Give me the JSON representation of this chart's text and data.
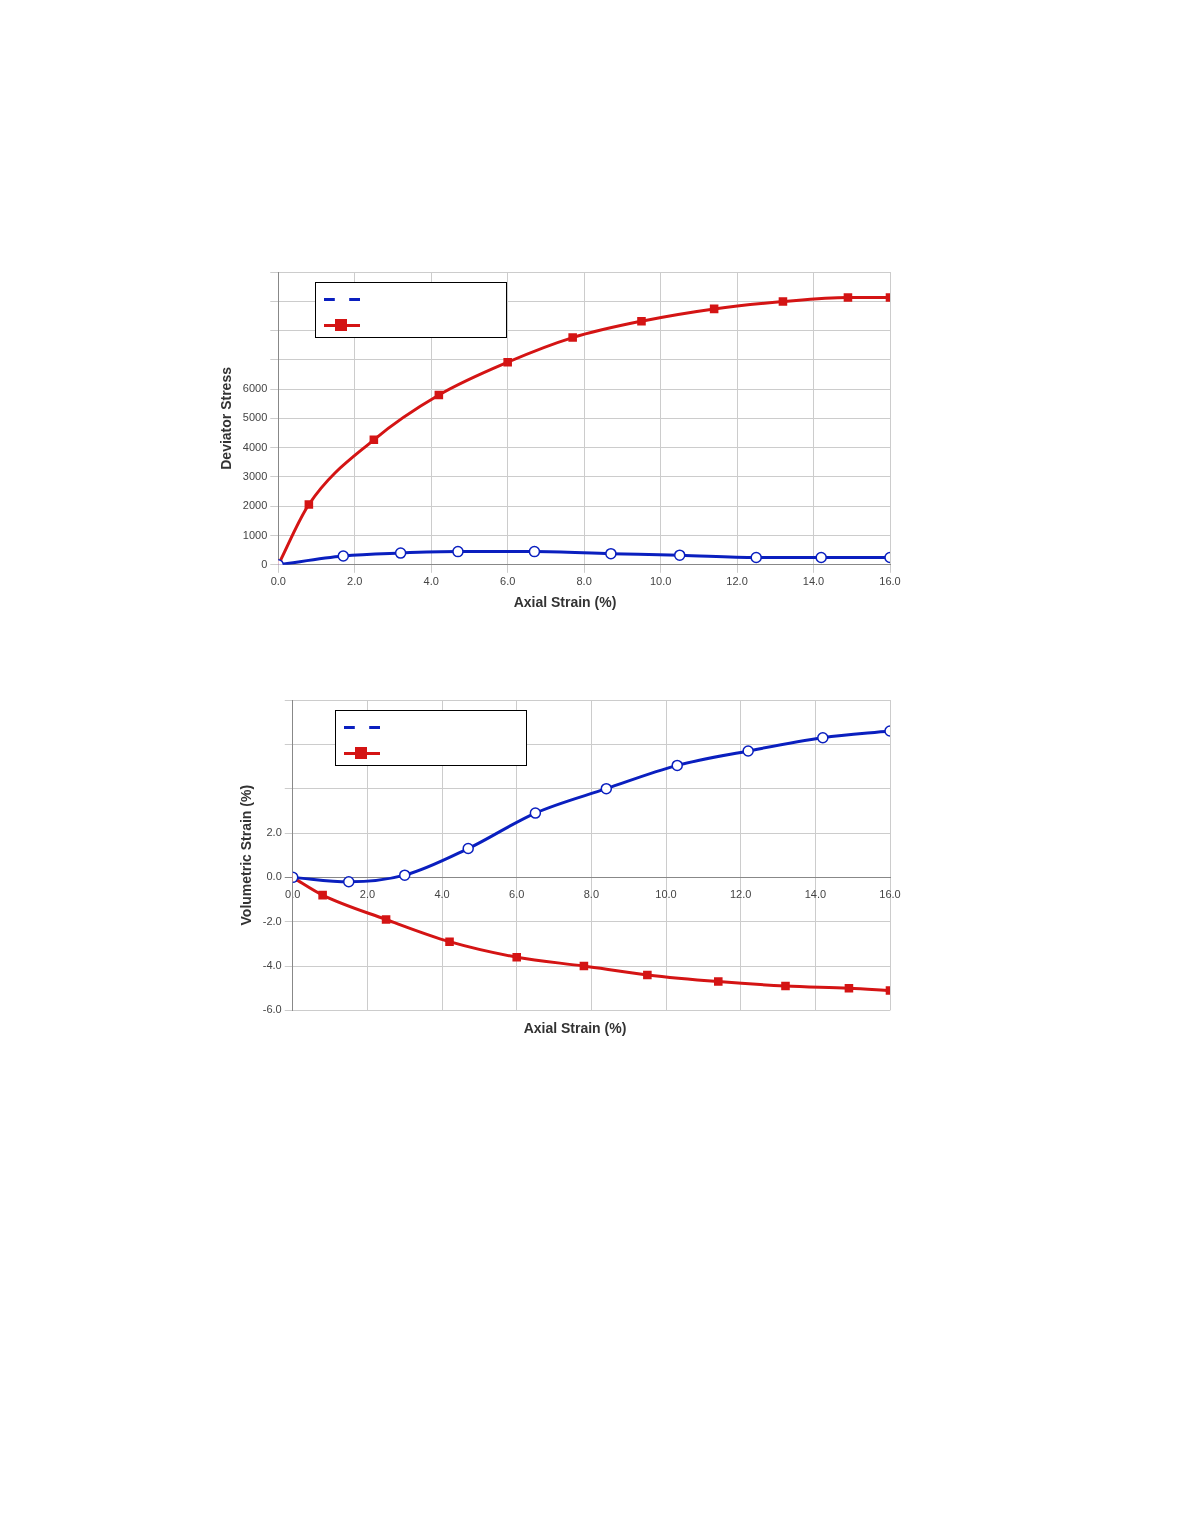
{
  "chart_data": [
    {
      "type": "line",
      "xlabel": "Axial Strain (%)",
      "ylabel": "Deviator Stress",
      "xlim": [
        0,
        16
      ],
      "xticks": [
        {
          "value": 0,
          "label": "0.0"
        },
        {
          "value": 2,
          "label": "2.0"
        },
        {
          "value": 4,
          "label": "4.0"
        },
        {
          "value": 6,
          "label": "6.0"
        },
        {
          "value": 8,
          "label": "8.0"
        },
        {
          "value": 10,
          "label": "10.0"
        },
        {
          "value": 12,
          "label": "12.0"
        },
        {
          "value": 14,
          "label": "14.0"
        },
        {
          "value": 16,
          "label": "16.0"
        }
      ],
      "ylim": [
        0,
        10000
      ],
      "yticks": [
        0,
        1000,
        2000,
        3000,
        4000,
        5000,
        6000,
        {
          "value": 7000,
          "label": null
        },
        {
          "value": 8000,
          "label": null
        },
        {
          "value": 9000,
          "label": null
        },
        {
          "value": 10000,
          "label": null
        }
      ],
      "grid": true,
      "line_style": "solid",
      "series": [
        {
          "color": "#0a1fbf",
          "marker": "circle",
          "x": [
            0,
            1.7,
            3.2,
            4.7,
            6.7,
            8.7,
            10.5,
            12.5,
            14.2,
            16
          ],
          "values": [
            0,
            300,
            400,
            450,
            450,
            380,
            330,
            250,
            250,
            250
          ]
        },
        {
          "color": "#d41414",
          "marker": "square",
          "x": [
            0,
            0.8,
            2.5,
            4.2,
            6,
            7.7,
            9.5,
            11.4,
            13.2,
            14.9,
            16
          ],
          "values": [
            0,
            2060,
            4270,
            5800,
            6920,
            7760,
            8320,
            8740,
            8990,
            9130,
            9130
          ]
        }
      ]
    },
    {
      "type": "line",
      "xlabel": "Axial Strain (%)",
      "ylabel": "Volumetric Strain (%)",
      "xlim": [
        0,
        16
      ],
      "xticks": [
        {
          "value": 0,
          "label": "0.0"
        },
        {
          "value": 2,
          "label": "2.0"
        },
        {
          "value": 4,
          "label": "4.0"
        },
        {
          "value": 6,
          "label": "6.0"
        },
        {
          "value": 8,
          "label": "8.0"
        },
        {
          "value": 10,
          "label": "10.0"
        },
        {
          "value": 12,
          "label": "12.0"
        },
        {
          "value": 14,
          "label": "14.0"
        },
        {
          "value": 16,
          "label": "16.0"
        }
      ],
      "ylim": [
        -6,
        8
      ],
      "yticks": [
        {
          "value": -6,
          "label": "-6.0"
        },
        {
          "value": -4,
          "label": "-4.0"
        },
        {
          "value": -2,
          "label": "-2.0"
        },
        {
          "value": 0,
          "label": "0.0"
        },
        {
          "value": 2,
          "label": "2.0"
        },
        {
          "value": 4,
          "label": null
        },
        {
          "value": 6,
          "label": null
        },
        {
          "value": 8,
          "label": null
        }
      ],
      "grid": true,
      "line_style": "solid",
      "series": [
        {
          "color": "#0a1fbf",
          "marker": "circle",
          "x": [
            0,
            1.5,
            3,
            4.7,
            6.5,
            8.4,
            10.3,
            12.2,
            14.2,
            16
          ],
          "values": [
            0,
            -0.2,
            0.1,
            1.3,
            2.9,
            4,
            5.05,
            5.7,
            6.3,
            6.6
          ]
        },
        {
          "color": "#d41414",
          "marker": "square",
          "x": [
            0,
            0.8,
            2.5,
            4.2,
            6,
            7.8,
            9.5,
            11.4,
            13.2,
            14.9,
            16
          ],
          "values": [
            0,
            -0.8,
            -1.9,
            -2.9,
            -3.6,
            -4,
            -4.4,
            -4.7,
            -4.9,
            -5,
            -5.1
          ]
        }
      ]
    }
  ]
}
